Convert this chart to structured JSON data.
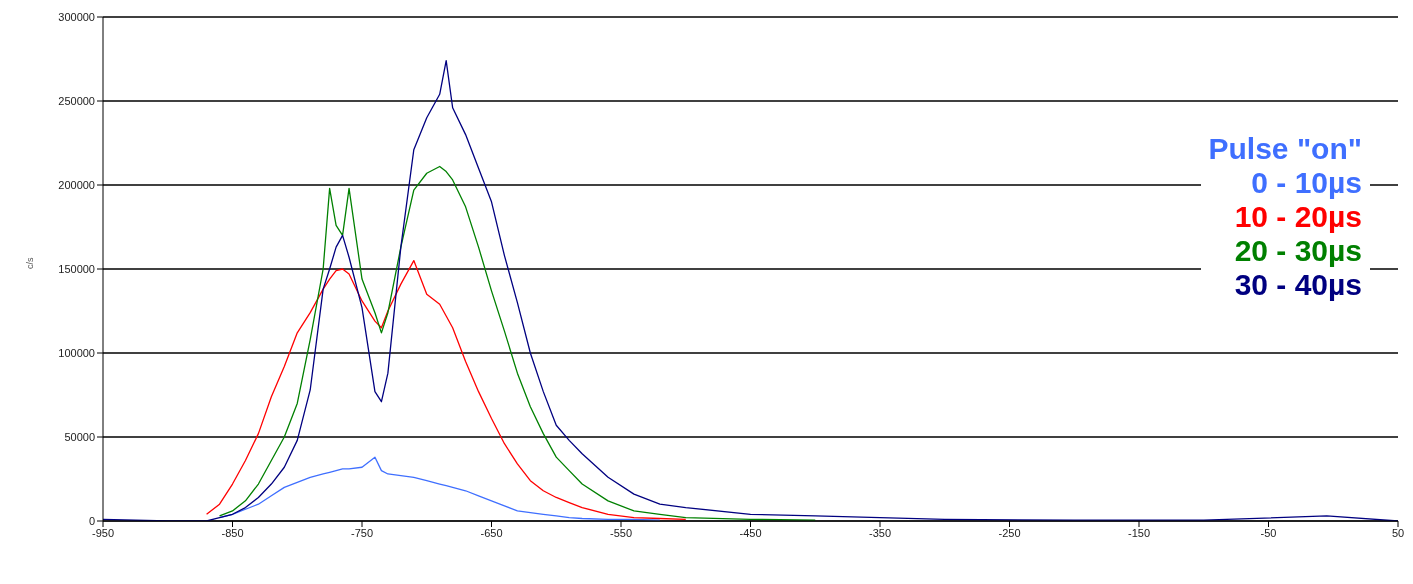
{
  "chart_data": {
    "type": "line",
    "ylabel": "c/s",
    "legend_title": "Pulse \"on\"",
    "legend": "right",
    "grid": "y",
    "marker": "none",
    "line_style": "solid",
    "xlim": [
      -950,
      50
    ],
    "xticks": [
      -950,
      -850,
      -750,
      -650,
      -550,
      -450,
      -350,
      -250,
      -150,
      -50,
      50
    ],
    "ylim": [
      0,
      300000
    ],
    "yticks": [
      0,
      50000,
      100000,
      150000,
      200000,
      250000,
      300000
    ],
    "x": [
      -950,
      -900,
      -880,
      -870,
      -860,
      -850,
      -840,
      -830,
      -820,
      -810,
      -800,
      -790,
      -780,
      -775,
      -770,
      -765,
      -760,
      -750,
      -740,
      -735,
      -730,
      -720,
      -710,
      -700,
      -690,
      -685,
      -680,
      -670,
      -660,
      -650,
      -640,
      -630,
      -620,
      -610,
      -600,
      -590,
      -580,
      -560,
      -540,
      -520,
      -500,
      -450,
      -400,
      -350,
      -300,
      -200,
      -100,
      -5,
      50
    ],
    "series": [
      {
        "name": "0 - 10µs",
        "color": "#3f6fff",
        "values": [
          null,
          null,
          null,
          null,
          2000,
          4000,
          7000,
          10000,
          15000,
          20000,
          23000,
          26000,
          28000,
          29000,
          30000,
          31000,
          31000,
          32000,
          38000,
          30000,
          28000,
          27000,
          26000,
          24000,
          22000,
          21000,
          20000,
          18000,
          15000,
          12000,
          9000,
          6000,
          5000,
          4000,
          3000,
          2000,
          1500,
          1000,
          1000,
          500,
          null,
          null,
          null,
          null,
          null,
          null,
          null,
          null,
          null
        ]
      },
      {
        "name": "10 - 20µs",
        "color": "#ff0000",
        "values": [
          null,
          null,
          null,
          4000,
          10000,
          22000,
          36000,
          52000,
          74000,
          92000,
          112000,
          124000,
          138000,
          144000,
          149000,
          150000,
          147000,
          131000,
          119000,
          115000,
          125000,
          141000,
          155000,
          135000,
          129000,
          122000,
          115000,
          95000,
          77000,
          61000,
          46000,
          34000,
          24000,
          18000,
          14000,
          11000,
          8000,
          4000,
          2000,
          1500,
          1000,
          null,
          null,
          null,
          null,
          null,
          null,
          null,
          null
        ]
      },
      {
        "name": "20 - 30µs",
        "color": "#008000",
        "values": [
          null,
          null,
          null,
          null,
          3000,
          6000,
          12000,
          22000,
          36000,
          50000,
          70000,
          108000,
          150000,
          198000,
          176000,
          170000,
          198000,
          144000,
          124000,
          112000,
          124000,
          163000,
          197000,
          207000,
          211000,
          208000,
          203000,
          187000,
          163000,
          137000,
          113000,
          88000,
          68000,
          52000,
          38000,
          30000,
          22000,
          12000,
          6000,
          4000,
          2000,
          1000,
          500,
          null,
          null,
          null,
          null,
          null,
          null
        ]
      },
      {
        "name": "30 - 40µs",
        "color": "#000080",
        "values": [
          1000,
          0,
          0,
          0,
          2000,
          4000,
          8000,
          14000,
          22000,
          32000,
          48000,
          78000,
          138000,
          150000,
          163000,
          170000,
          157000,
          127000,
          77000,
          71000,
          88000,
          163000,
          221000,
          240000,
          254000,
          274000,
          246000,
          230000,
          210000,
          190000,
          158000,
          130000,
          100000,
          77000,
          57000,
          48000,
          40000,
          26000,
          16000,
          10000,
          8000,
          4000,
          3000,
          2000,
          1000,
          500,
          500,
          3000,
          0
        ]
      }
    ]
  }
}
